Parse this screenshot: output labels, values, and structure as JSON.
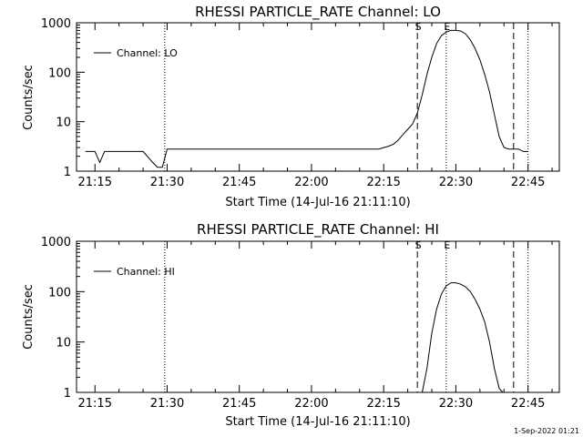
{
  "footer": "1-Sep-2022 01:21",
  "chart_data": [
    {
      "type": "line",
      "title": "RHESSI PARTICLE_RATE Channel: LO",
      "xlabel": "Start Time (14-Jul-16 21:11:10)",
      "ylabel": "Counts/sec",
      "y_scale": "log",
      "ylim": [
        1,
        1000
      ],
      "xlim": [
        "21:11:10",
        "22:51:30"
      ],
      "x_ticks": [
        "21:15",
        "21:30",
        "21:45",
        "22:00",
        "22:15",
        "22:30",
        "22:45"
      ],
      "y_ticks": [
        "1",
        "10",
        "100",
        "1000"
      ],
      "legend": {
        "position": "top-left",
        "entries": [
          "Channel: LO"
        ]
      },
      "markers": [
        {
          "time": "21:29:30",
          "style": "dotted",
          "label": ""
        },
        {
          "time": "22:22:00",
          "style": "dashed",
          "label": "S"
        },
        {
          "time": "22:28:00",
          "style": "dotted",
          "label": "E"
        },
        {
          "time": "22:42:00",
          "style": "dashed",
          "label": ""
        },
        {
          "time": "22:45:00",
          "style": "dotted",
          "label": ""
        }
      ],
      "series": [
        {
          "name": "Channel: LO",
          "x": [
            "21:13:00",
            "21:15:00",
            "21:16:00",
            "21:17:00",
            "21:20:00",
            "21:22:00",
            "21:25:00",
            "21:27:00",
            "21:28:00",
            "21:29:00",
            "21:30:00",
            "21:35:00",
            "21:38:00",
            "21:40:00",
            "21:45:00",
            "21:48:00",
            "21:50:00",
            "21:54:00",
            "21:58:00",
            "22:00:00",
            "22:05:00",
            "22:10:00",
            "22:14:00",
            "22:15:00",
            "22:16:00",
            "22:17:00",
            "22:18:00",
            "22:19:00",
            "22:20:00",
            "22:21:00",
            "22:22:00",
            "22:23:00",
            "22:24:00",
            "22:25:00",
            "22:26:00",
            "22:27:00",
            "22:28:00",
            "22:29:00",
            "22:30:00",
            "22:31:00",
            "22:32:00",
            "22:33:00",
            "22:34:00",
            "22:35:00",
            "22:36:00",
            "22:37:00",
            "22:38:00",
            "22:39:00",
            "22:40:00",
            "22:41:00",
            "22:42:00",
            "22:43:00",
            "22:44:00",
            "22:45:00"
          ],
          "values": [
            2.5,
            2.5,
            1.5,
            2.5,
            2.5,
            2.5,
            2.5,
            1.5,
            1.2,
            1.2,
            2.8,
            2.8,
            2.8,
            2.8,
            2.8,
            2.8,
            2.8,
            2.8,
            2.8,
            2.8,
            2.8,
            2.8,
            2.8,
            3.0,
            3.2,
            3.5,
            4.2,
            5.5,
            7.0,
            9.0,
            15,
            35,
            90,
            200,
            380,
            550,
            650,
            700,
            700,
            680,
            600,
            450,
            300,
            180,
            90,
            40,
            14,
            5,
            3,
            2.8,
            2.8,
            2.8,
            2.5,
            2.5
          ]
        }
      ]
    },
    {
      "type": "line",
      "title": "RHESSI PARTICLE_RATE Channel: HI",
      "xlabel": "Start Time (14-Jul-16 21:11:10)",
      "ylabel": "Counts/sec",
      "y_scale": "log",
      "ylim": [
        1,
        1000
      ],
      "xlim": [
        "21:11:10",
        "22:51:30"
      ],
      "x_ticks": [
        "21:15",
        "21:30",
        "21:45",
        "22:00",
        "22:15",
        "22:30",
        "22:45"
      ],
      "y_ticks": [
        "1",
        "10",
        "100",
        "1000"
      ],
      "legend": {
        "position": "top-left",
        "entries": [
          "Channel: HI"
        ]
      },
      "markers": [
        {
          "time": "21:29:30",
          "style": "dotted",
          "label": ""
        },
        {
          "time": "22:22:00",
          "style": "dashed",
          "label": "S"
        },
        {
          "time": "22:28:00",
          "style": "dotted",
          "label": "E"
        },
        {
          "time": "22:42:00",
          "style": "dashed",
          "label": ""
        },
        {
          "time": "22:45:00",
          "style": "dotted",
          "label": ""
        }
      ],
      "series": [
        {
          "name": "Channel: HI",
          "x": [
            "22:23:00",
            "22:24:00",
            "22:25:00",
            "22:26:00",
            "22:27:00",
            "22:28:00",
            "22:29:00",
            "22:30:00",
            "22:31:00",
            "22:32:00",
            "22:33:00",
            "22:34:00",
            "22:35:00",
            "22:36:00",
            "22:37:00",
            "22:38:00",
            "22:39:00",
            "22:39:45"
          ],
          "values": [
            1.0,
            3.0,
            15,
            45,
            90,
            130,
            150,
            150,
            140,
            125,
            100,
            70,
            45,
            25,
            10,
            3,
            1.2,
            1.0
          ]
        }
      ]
    }
  ]
}
